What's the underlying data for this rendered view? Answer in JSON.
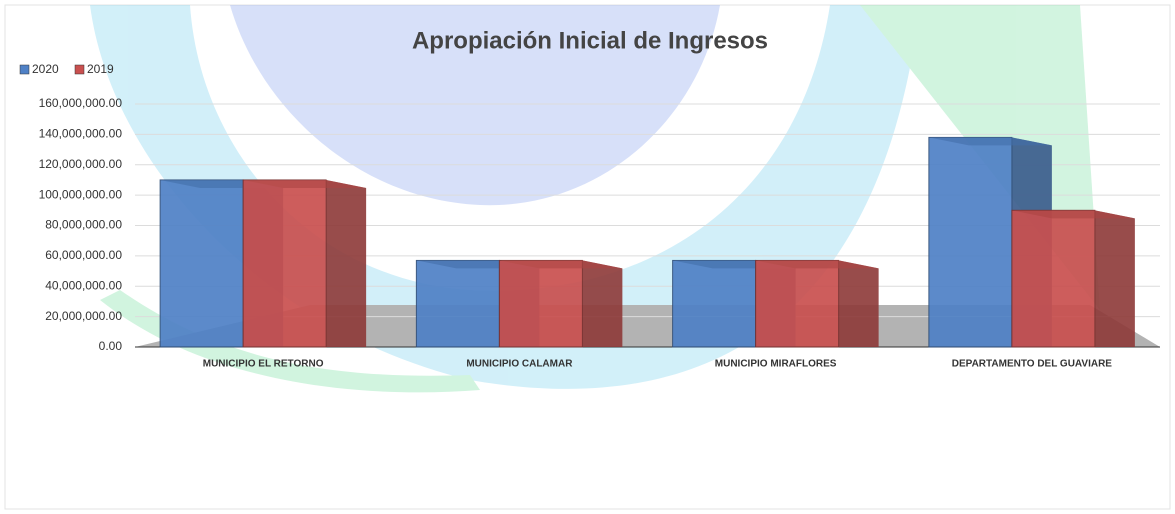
{
  "chart_data": {
    "type": "bar",
    "title": "Apropiación Inicial de Ingresos",
    "categories": [
      "MUNICIPIO EL RETORNO",
      "MUNICIPIO CALAMAR",
      "MUNICIPIO MIRAFLORES",
      "DEPARTAMENTO DEL GUAVIARE"
    ],
    "series": [
      {
        "name": "2020",
        "color": "#4f81c6",
        "values": [
          110000000,
          57000000,
          57000000,
          138000000
        ]
      },
      {
        "name": "2019",
        "color": "#c9504f",
        "values": [
          110000000,
          57000000,
          57000000,
          90000000
        ]
      }
    ],
    "ylim": [
      0,
      160000000
    ],
    "yticks": [
      {
        "value": 0,
        "label": "0.00"
      },
      {
        "value": 20000000,
        "label": "20,000,000.00"
      },
      {
        "value": 40000000,
        "label": "40,000,000.00"
      },
      {
        "value": 60000000,
        "label": "60,000,000.00"
      },
      {
        "value": 80000000,
        "label": "80,000,000.00"
      },
      {
        "value": 100000000,
        "label": "100,000,000.00"
      },
      {
        "value": 120000000,
        "label": "120,000,000.00"
      },
      {
        "value": 140000000,
        "label": "140,000,000.00"
      },
      {
        "value": 160000000,
        "label": "160,000,000.00"
      }
    ],
    "grid": true,
    "legend": "top-left"
  }
}
